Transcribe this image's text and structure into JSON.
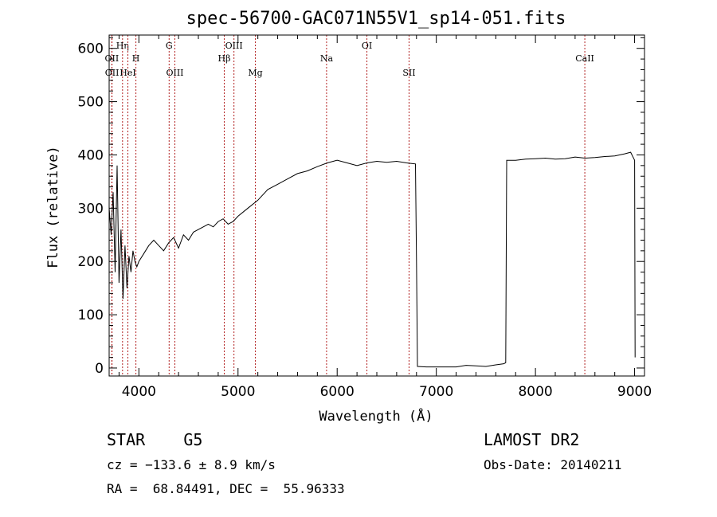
{
  "chart_data": {
    "type": "line",
    "title": "spec-56700-GAC071N55V1_sp14-051.fits",
    "xlabel": "Wavelength (Å)",
    "ylabel": "Flux (relative)",
    "xlim": [
      3700,
      9100
    ],
    "ylim": [
      -15,
      625
    ],
    "xticks": [
      4000,
      5000,
      6000,
      7000,
      8000,
      9000
    ],
    "yticks": [
      0,
      100,
      200,
      300,
      400,
      500,
      600
    ],
    "grid": false,
    "line_color": "#000000",
    "marker_color": "#b22222",
    "series": [
      {
        "x": [
          3700,
          3720,
          3740,
          3760,
          3780,
          3800,
          3820,
          3840,
          3860,
          3880,
          3900,
          3920,
          3940,
          3960,
          3980,
          4000,
          4050,
          4100,
          4150,
          4200,
          4250,
          4300,
          4350,
          4400,
          4450,
          4500,
          4550,
          4600,
          4650,
          4700,
          4750,
          4800,
          4850,
          4900,
          4950,
          5000,
          5100,
          5200,
          5300,
          5400,
          5500,
          5600,
          5700,
          5800,
          5900,
          6000,
          6100,
          6200,
          6300,
          6400,
          6500,
          6600,
          6700,
          6750,
          6790,
          6800,
          6810,
          6900,
          7000,
          7100,
          7200,
          7300,
          7400,
          7500,
          7600,
          7680,
          7700,
          7710,
          7800,
          7900,
          8000,
          8100,
          8200,
          8300,
          8400,
          8500,
          8600,
          8700,
          8800,
          8900,
          8960,
          9000,
          9005
        ],
        "y": [
          300,
          250,
          330,
          180,
          380,
          160,
          260,
          130,
          230,
          150,
          210,
          180,
          220,
          200,
          190,
          200,
          215,
          230,
          240,
          230,
          220,
          235,
          245,
          225,
          250,
          240,
          255,
          260,
          265,
          270,
          265,
          275,
          280,
          270,
          275,
          285,
          300,
          315,
          335,
          345,
          355,
          365,
          370,
          378,
          385,
          390,
          385,
          380,
          385,
          388,
          386,
          388,
          385,
          384,
          383,
          200,
          3,
          2,
          2,
          2,
          2,
          5,
          4,
          3,
          6,
          8,
          10,
          390,
          390,
          392,
          393,
          394,
          392,
          393,
          396,
          394,
          395,
          397,
          398,
          402,
          405,
          390,
          20
        ]
      }
    ],
    "lines": [
      {
        "label": "OII",
        "x": 3727,
        "row": 2
      },
      {
        "label": "OII",
        "x": 3729,
        "row": 3
      },
      {
        "label": "Hη",
        "x": 3835,
        "row": 1
      },
      {
        "label": "HeI",
        "x": 3889,
        "row": 3
      },
      {
        "label": "H",
        "x": 3970,
        "row": 2
      },
      {
        "label": "G",
        "x": 4305,
        "row": 1
      },
      {
        "label": "OIII",
        "x": 4363,
        "row": 3
      },
      {
        "label": "Hβ",
        "x": 4861,
        "row": 2
      },
      {
        "label": "OIII",
        "x": 4959,
        "row": 1
      },
      {
        "label": "Mg",
        "x": 5175,
        "row": 3
      },
      {
        "label": "Na",
        "x": 5893,
        "row": 2
      },
      {
        "label": "OI",
        "x": 6300,
        "row": 1
      },
      {
        "label": "SII",
        "x": 6725,
        "row": 3
      },
      {
        "label": "CaII",
        "x": 8498,
        "row": 2
      }
    ]
  },
  "info": {
    "object_class": "STAR    G5",
    "survey": "LAMOST DR2",
    "redshift": "cz = −133.6 ± 8.9 km/s",
    "obs_date": "Obs-Date: 20140211",
    "coords": "RA =  68.84491, DEC =  55.96333"
  }
}
